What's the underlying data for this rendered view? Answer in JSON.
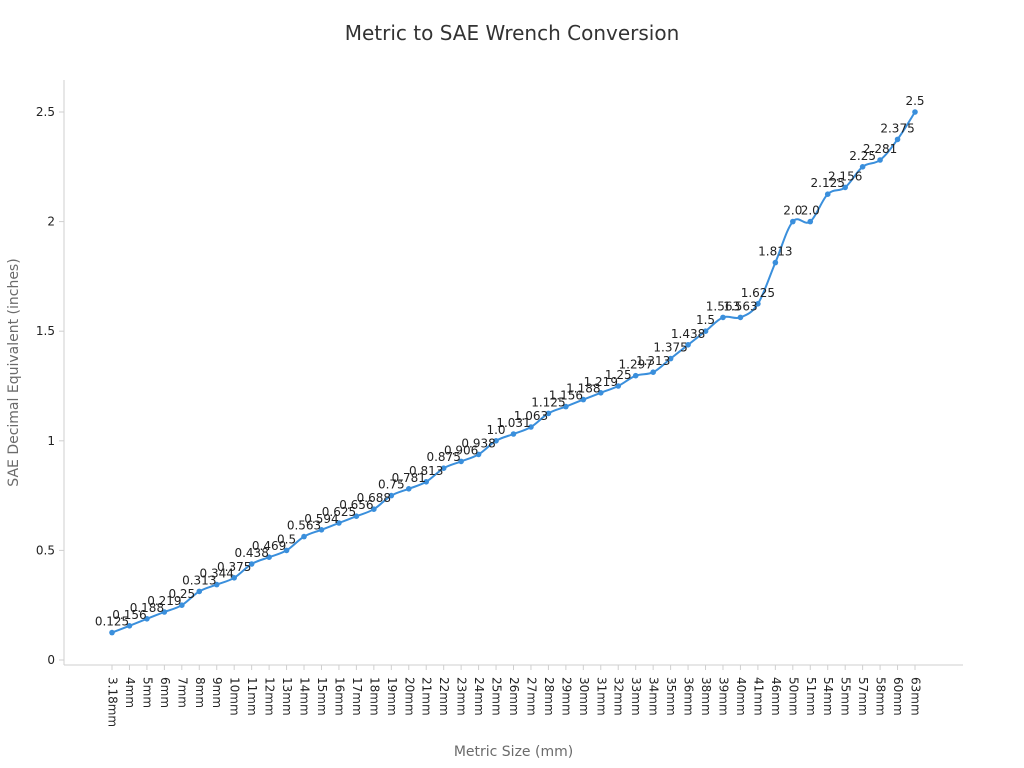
{
  "chart_data": {
    "type": "line",
    "title": "Metric to SAE Wrench Conversion",
    "xlabel": "Metric Size (mm)",
    "ylabel": "SAE Decimal Equivalent (inches)",
    "ylim": [
      0,
      2.5
    ],
    "yticks": [
      0,
      0.5,
      1,
      1.5,
      2,
      2.5
    ],
    "ytick_labels": [
      "0",
      "0.5",
      "1",
      "1.5",
      "2",
      "2.5"
    ],
    "grid": false,
    "legend": "none",
    "line_color": "#3a8fdc",
    "categories": [
      "3.18mm",
      "4mm",
      "5mm",
      "6mm",
      "7mm",
      "8mm",
      "9mm",
      "10mm",
      "11mm",
      "12mm",
      "13mm",
      "14mm",
      "15mm",
      "16mm",
      "17mm",
      "18mm",
      "19mm",
      "20mm",
      "21mm",
      "22mm",
      "23mm",
      "24mm",
      "25mm",
      "26mm",
      "27mm",
      "28mm",
      "29mm",
      "30mm",
      "31mm",
      "32mm",
      "33mm",
      "34mm",
      "35mm",
      "36mm",
      "38mm",
      "39mm",
      "40mm",
      "41mm",
      "46mm",
      "50mm",
      "51mm",
      "54mm",
      "55mm",
      "57mm",
      "58mm",
      "60mm",
      "63mm"
    ],
    "values": [
      0.125,
      0.156,
      0.188,
      0.219,
      0.25,
      0.313,
      0.344,
      0.375,
      0.438,
      0.469,
      0.5,
      0.563,
      0.594,
      0.625,
      0.656,
      0.688,
      0.75,
      0.781,
      0.813,
      0.875,
      0.906,
      0.938,
      1.0,
      1.031,
      1.063,
      1.125,
      1.156,
      1.188,
      1.219,
      1.25,
      1.297,
      1.313,
      1.375,
      1.438,
      1.5,
      1.563,
      1.563,
      1.625,
      1.813,
      2.0,
      2.0,
      2.125,
      2.156,
      2.25,
      2.281,
      2.375,
      2.5
    ],
    "value_labels": [
      "0.125",
      "0.156",
      "0.188",
      "0.219",
      "0.25",
      "0.313",
      "0.344",
      "0.375",
      "0.438",
      "0.469",
      "0.5",
      "0.563",
      "0.594",
      "0.625",
      "0.656",
      "0.688",
      "0.75",
      "0.781",
      "0.813",
      "0.875",
      "0.906",
      "0.938",
      "1.0",
      "1.031",
      "1.063",
      "1.125",
      "1.156",
      "1.188",
      "1.219",
      "1.25",
      "1.297",
      "1.313",
      "1.375",
      "1.438",
      "1.5",
      "1.563",
      "1.563",
      "1.625",
      "1.813",
      "2.0",
      "2.0",
      "2.125",
      "2.156",
      "2.25",
      "2.281",
      "2.375",
      "2.5"
    ]
  }
}
